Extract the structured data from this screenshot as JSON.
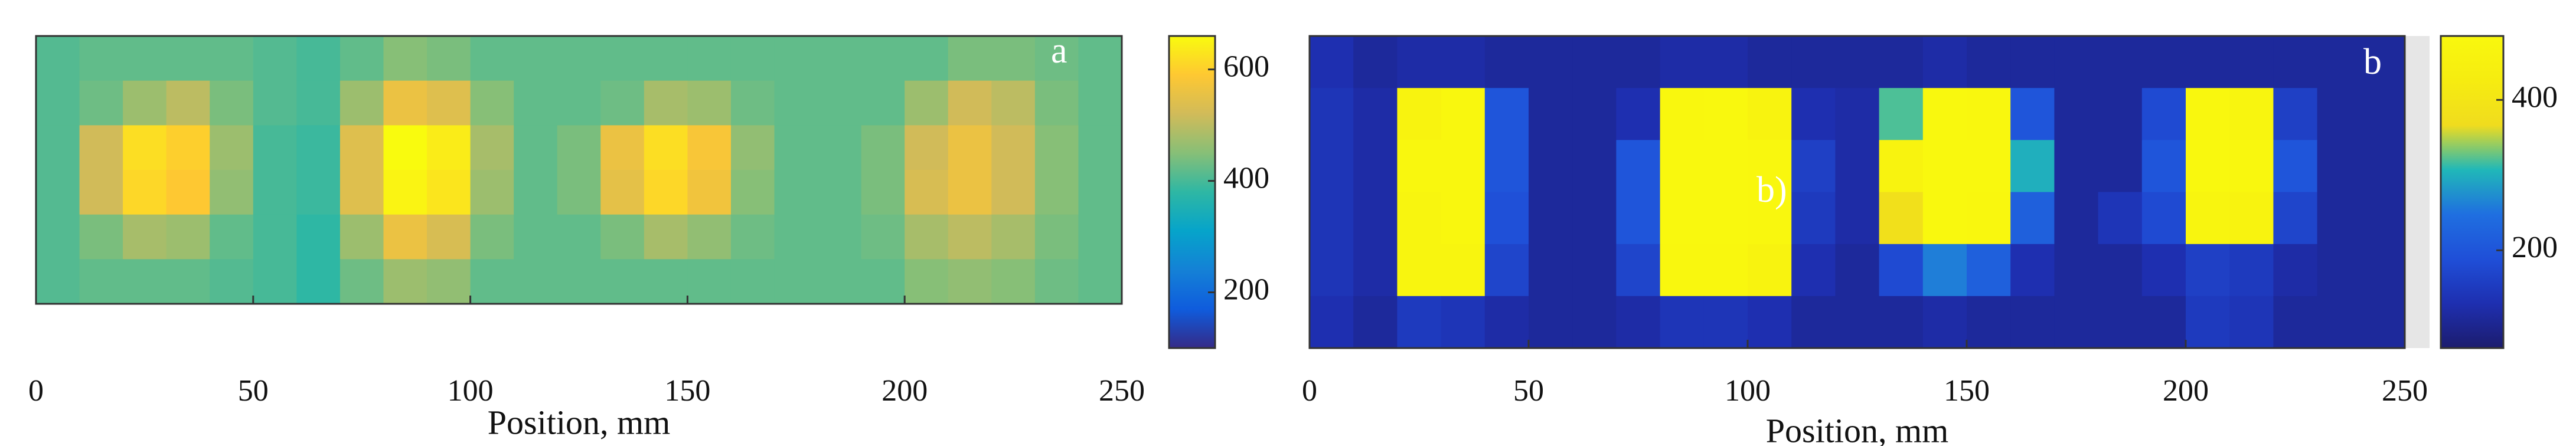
{
  "chart_data": [
    {
      "type": "heatmap",
      "panel_label": "a",
      "xlabel": "Position, mm",
      "xlim": [
        0,
        250
      ],
      "xticks": [
        0,
        50,
        100,
        150,
        200,
        250
      ],
      "xbins": [
        0,
        10,
        20,
        30,
        40,
        50,
        60,
        70,
        80,
        90,
        100,
        110,
        120,
        130,
        140,
        150,
        160,
        170,
        180,
        190,
        200,
        210,
        220,
        230,
        240,
        250
      ],
      "values": [
        [
          410,
          420,
          420,
          420,
          420,
          410,
          400,
          420,
          450,
          440,
          420,
          420,
          420,
          420,
          420,
          420,
          420,
          420,
          420,
          420,
          420,
          440,
          440,
          430,
          420
        ],
        [
          410,
          430,
          470,
          500,
          440,
          410,
          400,
          470,
          560,
          540,
          450,
          420,
          420,
          430,
          480,
          470,
          430,
          420,
          420,
          420,
          470,
          520,
          500,
          440,
          420
        ],
        [
          410,
          520,
          620,
          600,
          470,
          400,
          390,
          540,
          660,
          640,
          480,
          420,
          440,
          560,
          620,
          580,
          460,
          420,
          420,
          440,
          520,
          560,
          520,
          450,
          420
        ],
        [
          410,
          520,
          610,
          590,
          460,
          400,
          390,
          540,
          650,
          630,
          470,
          420,
          440,
          550,
          610,
          570,
          450,
          420,
          420,
          440,
          530,
          560,
          520,
          450,
          420
        ],
        [
          410,
          440,
          480,
          470,
          420,
          400,
          380,
          470,
          560,
          530,
          440,
          420,
          420,
          440,
          480,
          460,
          430,
          420,
          420,
          430,
          480,
          500,
          480,
          440,
          420
        ],
        [
          410,
          420,
          420,
          420,
          410,
          400,
          380,
          430,
          470,
          460,
          420,
          420,
          420,
          420,
          420,
          420,
          420,
          420,
          420,
          420,
          450,
          460,
          450,
          430,
          420
        ]
      ],
      "clim": [
        100,
        660
      ],
      "cticks": [
        200,
        400,
        600
      ],
      "colormap": [
        "#352a87",
        "#0f5cdd",
        "#1481d6",
        "#06a4ca",
        "#2eb7a4",
        "#87bf77",
        "#d1bb59",
        "#fec832",
        "#f9fb0e"
      ]
    },
    {
      "type": "heatmap",
      "panel_label": "b",
      "annotation": "b)",
      "xlabel": "Position, mm",
      "xlim": [
        0,
        250
      ],
      "xticks": [
        0,
        50,
        100,
        150,
        200,
        250
      ],
      "xbins": [
        0,
        10,
        20,
        30,
        40,
        50,
        60,
        70,
        80,
        90,
        100,
        110,
        120,
        130,
        140,
        150,
        160,
        170,
        180,
        190,
        200,
        210,
        220,
        230,
        240,
        250
      ],
      "values": [
        [
          130,
          110,
          120,
          120,
          110,
          110,
          110,
          110,
          120,
          120,
          110,
          110,
          110,
          110,
          120,
          110,
          110,
          110,
          110,
          110,
          110,
          110,
          110,
          110,
          110
        ],
        [
          140,
          120,
          460,
          480,
          200,
          110,
          110,
          130,
          480,
          490,
          460,
          130,
          120,
          320,
          490,
          480,
          200,
          110,
          110,
          180,
          480,
          470,
          160,
          110,
          110
        ],
        [
          140,
          120,
          480,
          480,
          200,
          110,
          110,
          200,
          490,
          490,
          480,
          160,
          120,
          460,
          490,
          490,
          300,
          110,
          110,
          200,
          490,
          480,
          200,
          110,
          110
        ],
        [
          140,
          120,
          470,
          480,
          190,
          110,
          110,
          200,
          490,
          490,
          480,
          150,
          120,
          380,
          490,
          480,
          220,
          110,
          140,
          180,
          470,
          460,
          170,
          110,
          110
        ],
        [
          140,
          120,
          470,
          470,
          170,
          110,
          110,
          170,
          480,
          480,
          460,
          130,
          110,
          180,
          260,
          220,
          130,
          110,
          110,
          130,
          160,
          150,
          120,
          110,
          110
        ],
        [
          130,
          110,
          150,
          140,
          120,
          110,
          110,
          120,
          140,
          140,
          130,
          110,
          110,
          110,
          120,
          110,
          110,
          110,
          110,
          110,
          150,
          140,
          110,
          110,
          110
        ]
      ],
      "clim": [
        70,
        485
      ],
      "cticks": [
        200,
        400
      ],
      "colormap": [
        "#1c1c6e",
        "#1e2fb0",
        "#1f4fd8",
        "#1f6fe0",
        "#20b8b8",
        "#f0dc1e",
        "#f6ec10",
        "#f9f80e"
      ]
    }
  ]
}
